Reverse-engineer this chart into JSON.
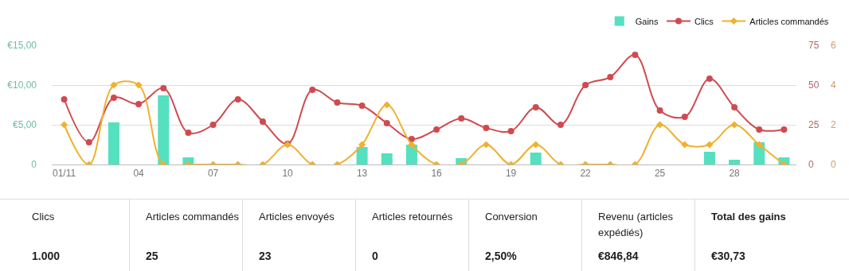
{
  "chart_data": {
    "type": "bar",
    "categories": [
      "01/11",
      null,
      null,
      "04",
      null,
      null,
      "07",
      null,
      null,
      "10",
      null,
      null,
      "13",
      null,
      null,
      "16",
      null,
      null,
      "19",
      null,
      null,
      "22",
      null,
      null,
      "25",
      null,
      null,
      "28",
      null,
      null
    ],
    "series": [
      {
        "name": "Gains",
        "color": "#55e0c0",
        "values": [
          0,
          null,
          5.3,
          0,
          8.7,
          0.9,
          0,
          0,
          0,
          0,
          0,
          0,
          2.2,
          1.4,
          2.5,
          0,
          0.8,
          0,
          0,
          1.5,
          0,
          0,
          0,
          0,
          0,
          0,
          1.6,
          0.6,
          2.8,
          0.9
        ]
      },
      {
        "name": "Clics",
        "type": "line",
        "axis": "y2",
        "color": "#cf4a4f",
        "marker": "circle",
        "values": [
          41,
          14,
          42,
          38,
          48,
          20,
          25,
          41,
          27,
          13,
          47,
          39,
          37,
          26,
          16,
          22,
          29,
          23,
          21,
          36,
          25,
          50,
          55,
          69,
          34,
          30,
          54,
          36,
          22,
          22
        ]
      },
      {
        "name": "Articles commandés",
        "type": "line",
        "axis": "y3",
        "color": "#efb130",
        "marker": "diamond",
        "values": [
          2,
          0,
          4,
          4,
          0,
          0,
          0,
          0,
          0,
          1,
          0,
          0,
          1,
          3,
          1,
          0,
          0,
          1,
          0,
          1,
          0,
          0,
          0,
          0,
          2,
          1,
          1,
          2,
          1,
          0
        ]
      }
    ],
    "ylim": [
      0,
      15
    ],
    "yticks": [
      {
        "value": 0,
        "label": "0"
      },
      {
        "value": 5,
        "label": "€5,00"
      },
      {
        "value": 10,
        "label": "€10,00"
      },
      {
        "value": 15,
        "label": "€15,00"
      }
    ],
    "y2lim": [
      0,
      75
    ],
    "y2ticks": [
      0,
      25,
      50,
      75
    ],
    "y3lim": [
      0,
      6
    ],
    "y3ticks": [
      0,
      2,
      4,
      6
    ],
    "grid": "y",
    "legend": "top right",
    "annotations": [
      "Clics",
      "1.000",
      "Articles commandés",
      "25",
      "Articles envoyés",
      "23",
      "Articles retournés",
      "0",
      "Conversion",
      "2,50%",
      "Revenu (articles expédiés)",
      "€846,84",
      "Total des gains",
      "€30,73"
    ]
  }
}
